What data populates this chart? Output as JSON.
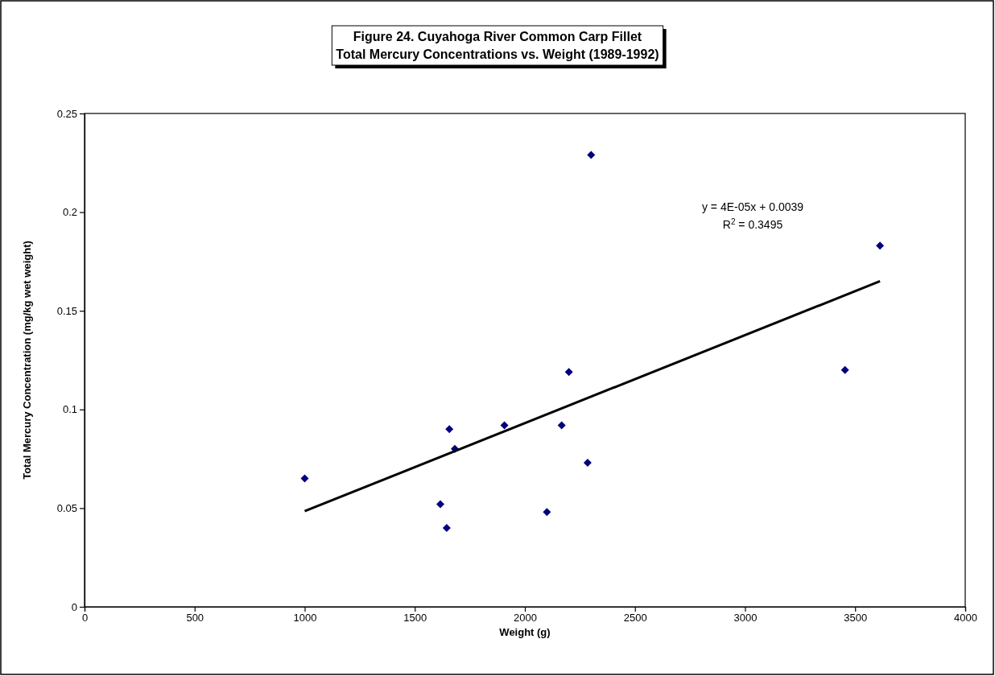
{
  "chart_data": {
    "type": "scatter",
    "title": "Figure 24. Cuyahoga River Common Carp Fillet\nTotal Mercury Concentrations vs. Weight (1989-1992)",
    "xlabel": "Weight (g)",
    "ylabel": "Total Mercury Concentration (mg/kg wet weight)",
    "xlim": [
      0,
      4000
    ],
    "xticks": [
      0,
      500,
      1000,
      1500,
      2000,
      2500,
      3000,
      3500,
      4000
    ],
    "ylim": [
      0,
      0.25
    ],
    "yticks": [
      0,
      0.05,
      0.1,
      0.15,
      0.2,
      0.25
    ],
    "grid": false,
    "marker": "diamond",
    "series": [
      {
        "color": "#000080",
        "x": [
          1000,
          1657,
          1682,
          1907,
          2167,
          2200,
          2285,
          1616,
          1645,
          2100,
          2301,
          3613,
          3454
        ],
        "values": [
          0.065,
          0.09,
          0.08,
          0.092,
          0.092,
          0.119,
          0.073,
          0.052,
          0.04,
          0.048,
          0.229,
          0.183,
          0.12
        ]
      },
      {
        "type": "line",
        "color": "#000000",
        "line_style": "solid",
        "marker": "none",
        "x": [
          1000,
          3613
        ],
        "values": [
          0.0485,
          0.165
        ]
      }
    ],
    "annotations": [
      "y = 4E-05x + 0.0039\nR$^{2}$ = 0.3495"
    ]
  }
}
